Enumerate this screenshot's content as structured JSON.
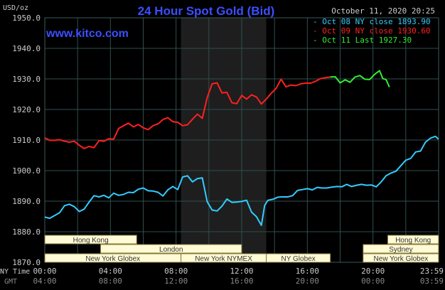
{
  "header": {
    "title": "24 Hour Spot Gold (Bid)",
    "datetime": "October 11, 2020 20:25",
    "site": "www.kitco.com"
  },
  "legend": [
    {
      "label": "Oct 08 NY close 1893.90",
      "color": "#33ccff"
    },
    {
      "label": "Oct 09 NY close 1930.60",
      "color": "#ff2020"
    },
    {
      "label": "Oct 11 Last 1927.30",
      "color": "#33ee33"
    }
  ],
  "colors": {
    "background": "#000000",
    "grid": "#2f4f4f",
    "title": "#3b4fff",
    "site": "#3b4fff",
    "session_fill": "#fffbd6",
    "session_border": "#8a7a3a",
    "axis_text": "#cccccc",
    "gmt_text": "#888888"
  },
  "chart_data": {
    "type": "line",
    "title": "24 Hour Spot Gold (Bid)",
    "ylabel": "USD/oz",
    "ylim": [
      1870,
      1950
    ],
    "xlim": [
      0,
      24
    ],
    "yticks": [
      1870,
      1880,
      1890,
      1900,
      1910,
      1920,
      1930,
      1940,
      1950
    ],
    "ytick_labels": [
      "1870.0",
      "1880.0",
      "1890.0",
      "1900.0",
      "1910.0",
      "1920.0",
      "1930.0",
      "1940.0",
      "1950.0"
    ],
    "xticks": [
      0,
      4,
      8,
      12,
      16,
      20,
      24
    ],
    "x_row_label": "NY Time",
    "xtick_labels": [
      "00:00",
      "04:00",
      "08:00",
      "12:00",
      "16:00",
      "20:00",
      "23:59"
    ],
    "gmt_row_label": "GMT",
    "gmt_tick_labels": [
      "04:00",
      "08:00",
      "12:00",
      "16:00",
      "20:00",
      "00:00",
      "03:59"
    ],
    "grid": true,
    "shaded_x_range": [
      8.3,
      13.5
    ],
    "series": [
      {
        "name": "Oct 08 NY close 1893.90",
        "color": "#33ccff",
        "x": [
          0,
          0.3,
          0.6,
          0.9,
          1.2,
          1.5,
          1.8,
          2.1,
          2.4,
          2.7,
          3.0,
          3.3,
          3.6,
          3.9,
          4.2,
          4.5,
          4.8,
          5.1,
          5.4,
          5.7,
          6.0,
          6.3,
          6.6,
          6.9,
          7.2,
          7.5,
          7.8,
          8.1,
          8.4,
          8.7,
          9.0,
          9.3,
          9.6,
          9.9,
          10.2,
          10.5,
          10.8,
          11.1,
          11.4,
          11.7,
          12.0,
          12.3,
          12.6,
          12.9,
          13.2,
          13.4,
          13.6,
          13.9,
          14.2,
          14.5,
          14.8,
          15.1,
          15.4,
          15.7,
          16.0,
          16.3,
          16.6,
          16.9,
          17.2,
          17.5,
          17.8,
          18.1,
          18.4,
          18.7,
          19.0,
          19.3,
          19.6,
          19.9,
          20.2,
          20.5,
          20.8,
          21.1,
          21.4,
          21.7,
          22.0,
          22.3,
          22.6,
          22.9,
          23.2,
          23.5,
          23.8,
          23.99
        ],
        "y": [
          1884.8,
          1884.4,
          1885.3,
          1886.2,
          1888.5,
          1889.0,
          1888.2,
          1886.6,
          1887.4,
          1889.7,
          1891.8,
          1891.4,
          1891.9,
          1891.1,
          1892.6,
          1891.9,
          1892.2,
          1892.9,
          1892.8,
          1893.9,
          1894.3,
          1893.4,
          1893.3,
          1892.9,
          1891.7,
          1893.7,
          1894.8,
          1893.8,
          1897.9,
          1898.3,
          1896.3,
          1897.4,
          1897.6,
          1889.8,
          1887.1,
          1886.8,
          1888.4,
          1890.7,
          1889.6,
          1889.7,
          1889.9,
          1890.3,
          1886.4,
          1884.9,
          1882.1,
          1888.6,
          1890.3,
          1890.6,
          1891.3,
          1891.4,
          1891.4,
          1891.8,
          1893.5,
          1893.8,
          1894.1,
          1893.7,
          1894.5,
          1894.3,
          1894.3,
          1894.6,
          1894.8,
          1894.7,
          1895.5,
          1894.8,
          1895.2,
          1895.5,
          1895.2,
          1895.3,
          1894.7,
          1896.3,
          1898.3,
          1899.2,
          1899.8,
          1901.6,
          1903.4,
          1904.0,
          1906.1,
          1906.4,
          1909.3,
          1910.6,
          1911.2,
          1910.3
        ]
      },
      {
        "name": "Oct 09 NY close 1930.60",
        "color": "#ff2020",
        "x": [
          0,
          0.3,
          0.6,
          0.9,
          1.2,
          1.5,
          1.8,
          2.1,
          2.4,
          2.7,
          3.0,
          3.3,
          3.6,
          3.9,
          4.2,
          4.5,
          4.8,
          5.1,
          5.4,
          5.7,
          6.0,
          6.3,
          6.6,
          6.9,
          7.2,
          7.5,
          7.8,
          8.1,
          8.4,
          8.7,
          9.0,
          9.3,
          9.6,
          9.9,
          10.2,
          10.5,
          10.8,
          11.1,
          11.4,
          11.7,
          12.0,
          12.3,
          12.6,
          12.9,
          13.2,
          13.5,
          13.8,
          14.1,
          14.4,
          14.7,
          15.0,
          15.3,
          15.6,
          15.9,
          16.2,
          16.5,
          16.8,
          17.1,
          17.4
        ],
        "y": [
          1910.7,
          1909.9,
          1909.9,
          1910.1,
          1909.6,
          1909.3,
          1909.6,
          1908.3,
          1907.2,
          1907.9,
          1907.5,
          1909.8,
          1909.6,
          1910.4,
          1910.3,
          1913.8,
          1914.7,
          1915.5,
          1914.3,
          1915.1,
          1914.0,
          1913.4,
          1914.7,
          1915.3,
          1916.7,
          1917.3,
          1916.0,
          1915.8,
          1914.7,
          1915.0,
          1916.8,
          1918.5,
          1917.1,
          1923.9,
          1928.4,
          1928.7,
          1925.4,
          1925.6,
          1922.2,
          1921.9,
          1924.6,
          1923.4,
          1924.8,
          1924.1,
          1921.8,
          1923.4,
          1925.3,
          1926.9,
          1929.9,
          1927.4,
          1928.0,
          1927.8,
          1928.4,
          1928.6,
          1928.6,
          1929.2,
          1930.1,
          1930.4,
          1930.6
        ]
      },
      {
        "name": "Oct 11 Last 1927.30",
        "color": "#33ee33",
        "x": [
          17.4,
          17.7,
          18.0,
          18.3,
          18.6,
          18.9,
          19.2,
          19.5,
          19.8,
          20.1,
          20.4,
          20.6,
          20.8,
          21.0
        ],
        "y": [
          1930.6,
          1930.7,
          1928.7,
          1929.7,
          1928.9,
          1930.6,
          1931.1,
          1929.9,
          1929.8,
          1931.5,
          1932.7,
          1930.1,
          1929.8,
          1927.3
        ]
      }
    ]
  },
  "sessions": [
    {
      "label": "Hong Kong",
      "row": 0,
      "x0": 0,
      "x1": 5.6
    },
    {
      "label": "Hong Kong",
      "row": 0,
      "x0": 20.9,
      "x1": 24
    },
    {
      "label": "London",
      "row": 1,
      "x0": 3.4,
      "x1": 12.0
    },
    {
      "label": "Sydney",
      "row": 1,
      "x0": 19.4,
      "x1": 24
    },
    {
      "label": "New York Globex",
      "row": 2,
      "x0": 0,
      "x1": 8.3
    },
    {
      "label": "New York NYMEX",
      "row": 2,
      "x0": 8.3,
      "x1": 13.5
    },
    {
      "label": "NY Globex",
      "row": 2,
      "x0": 13.5,
      "x1": 17.4
    },
    {
      "label": "New York Globex",
      "row": 2,
      "x0": 19.4,
      "x1": 24
    }
  ]
}
